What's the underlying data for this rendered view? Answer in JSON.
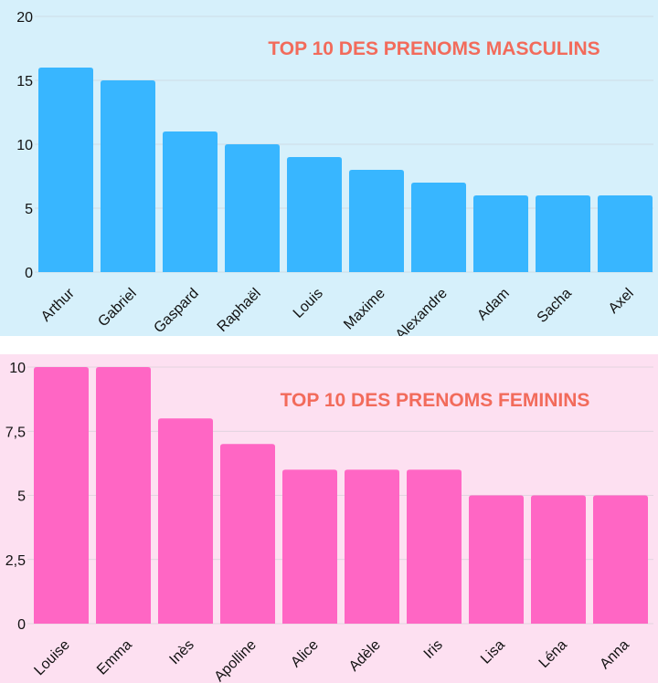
{
  "chart_data": [
    {
      "type": "bar",
      "title": "TOP 10 DES PRENOMS MASCULINS",
      "categories": [
        "Arthur",
        "Gabriel",
        "Gaspard",
        "Raphaël",
        "Louis",
        "Maxime",
        "Alexandre",
        "Adam",
        "Sacha",
        "Axel"
      ],
      "values": [
        16,
        15,
        11,
        10,
        9,
        8,
        7,
        6,
        6,
        6
      ],
      "xlabel": "",
      "ylabel": "",
      "ylim": [
        0,
        20
      ],
      "yticks": [
        "0",
        "5",
        "10",
        "15",
        "20"
      ],
      "ytick_values": [
        0,
        5,
        10,
        15,
        20
      ],
      "grid": true,
      "bar_color": "#38b6ff",
      "background": "#d6f0fb",
      "title_color": "#f26b5b"
    },
    {
      "type": "bar",
      "title": "TOP 10 DES PRENOMS FEMININS",
      "categories": [
        "Louise",
        "Emma",
        "Inès",
        "Apolline",
        "Alice",
        "Adèle",
        "Iris",
        "Lisa",
        "Léna",
        "Anna"
      ],
      "values": [
        10,
        10,
        8,
        7,
        6,
        6,
        6,
        5,
        5,
        5
      ],
      "xlabel": "",
      "ylabel": "",
      "ylim": [
        0,
        10
      ],
      "yticks": [
        "0",
        "2,5",
        "5",
        "7,5",
        "10"
      ],
      "ytick_values": [
        0,
        2.5,
        5,
        7.5,
        10
      ],
      "grid": true,
      "bar_color": "#ff66c4",
      "background": "#fde0f1",
      "title_color": "#f26b5b"
    }
  ]
}
